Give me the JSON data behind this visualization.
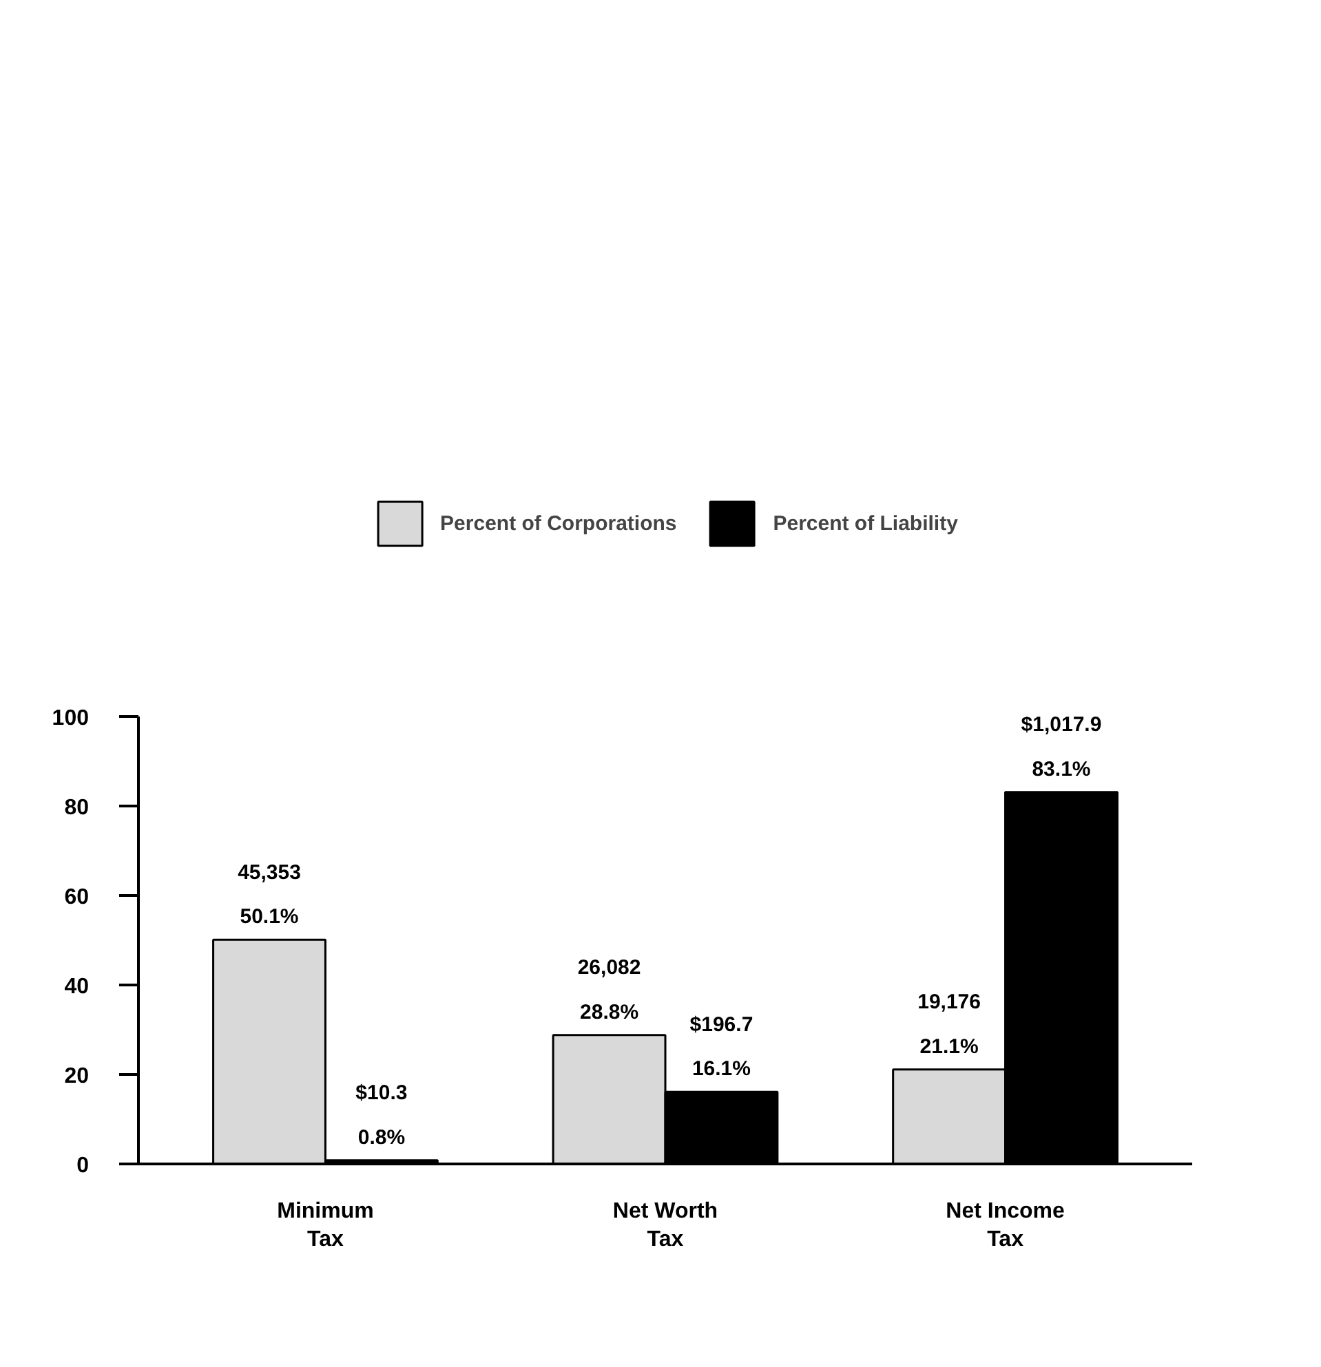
{
  "chart_data": {
    "type": "bar",
    "categories": [
      "Minimum\nTax",
      "Net Worth\nTax",
      "Net Income\nTax"
    ],
    "series": [
      {
        "name": "Percent of Corporations",
        "color": "#d9d9d9",
        "values": [
          50.1,
          28.8,
          21.1
        ],
        "value_labels": [
          "45,353\n50.1%",
          "26,082\n28.8%",
          "19,176\n21.1%"
        ]
      },
      {
        "name": "Percent of Liability",
        "color": "#000000",
        "values": [
          0.8,
          16.1,
          83.1
        ],
        "value_labels": [
          "$10.3\n0.8%",
          "$196.7\n16.1%",
          "$1,017.9\n83.1%"
        ]
      }
    ],
    "ylim": [
      0,
      100
    ],
    "yticks": [
      0,
      20,
      40,
      60,
      80,
      100
    ],
    "grid": false,
    "legend": "top"
  }
}
